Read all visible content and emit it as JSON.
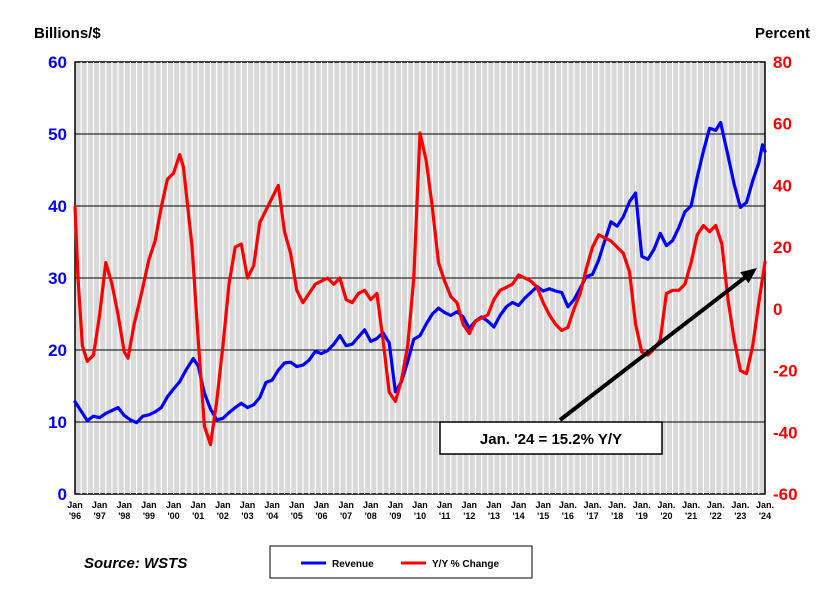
{
  "chart_data": {
    "type": "line",
    "left_axis_title": "Billions/$",
    "right_axis_title": "Percent",
    "source": "Source: WSTS",
    "annotation": "Jan. '24 = 15.2% Y/Y",
    "legend_position": "bottom-center",
    "grid": true,
    "colors": {
      "revenue": "#0000ff",
      "yoy": "#ff0000",
      "left_axis": "#0000ff",
      "right_axis": "#ff0000"
    },
    "y_left": {
      "range": [
        0,
        60
      ],
      "ticks": [
        "0",
        "10",
        "20",
        "30",
        "40",
        "50",
        "60"
      ]
    },
    "y_right": {
      "range": [
        -60,
        80
      ],
      "ticks": [
        "-60",
        "-40",
        "-20",
        "0",
        "20",
        "40",
        "60",
        "80"
      ]
    },
    "x_range": [
      1996,
      2024
    ],
    "x_ticks": [
      {
        "year": 1996,
        "line1": "Jan",
        "line2": "'96"
      },
      {
        "year": 1997,
        "line1": "Jan",
        "line2": "'97"
      },
      {
        "year": 1998,
        "line1": "Jan",
        "line2": "'98"
      },
      {
        "year": 1999,
        "line1": "Jan",
        "line2": "'99"
      },
      {
        "year": 2000,
        "line1": "Jan",
        "line2": "'00"
      },
      {
        "year": 2001,
        "line1": "Jan",
        "line2": "'01"
      },
      {
        "year": 2002,
        "line1": "Jan",
        "line2": "'02"
      },
      {
        "year": 2003,
        "line1": "Jan",
        "line2": "'03"
      },
      {
        "year": 2004,
        "line1": "Jan",
        "line2": "'04"
      },
      {
        "year": 2005,
        "line1": "Jan",
        "line2": "'05"
      },
      {
        "year": 2006,
        "line1": "Jan",
        "line2": "'06"
      },
      {
        "year": 2007,
        "line1": "Jan",
        "line2": "'07"
      },
      {
        "year": 2008,
        "line1": "Jan",
        "line2": "'08"
      },
      {
        "year": 2009,
        "line1": "Jan",
        "line2": "'09"
      },
      {
        "year": 2010,
        "line1": "Jan",
        "line2": "'10"
      },
      {
        "year": 2011,
        "line1": "Jan",
        "line2": "'11"
      },
      {
        "year": 2012,
        "line1": "Jan",
        "line2": "'12"
      },
      {
        "year": 2013,
        "line1": "Jan",
        "line2": "'13"
      },
      {
        "year": 2014,
        "line1": "Jan",
        "line2": "'14"
      },
      {
        "year": 2015,
        "line1": "Jan",
        "line2": "'15"
      },
      {
        "year": 2016,
        "line1": "Jan.",
        "line2": "'16"
      },
      {
        "year": 2017,
        "line1": "Jan.",
        "line2": "'17"
      },
      {
        "year": 2018,
        "line1": "Jan.",
        "line2": "'18"
      },
      {
        "year": 2019,
        "line1": "Jan.",
        "line2": "'19"
      },
      {
        "year": 2020,
        "line1": "Jan.",
        "line2": "'20"
      },
      {
        "year": 2021,
        "line1": "Jan.",
        "line2": "'21"
      },
      {
        "year": 2022,
        "line1": "Jan.",
        "line2": "'22"
      },
      {
        "year": 2023,
        "line1": "Jan.",
        "line2": "'23"
      },
      {
        "year": 2024,
        "line1": "Jan.",
        "line2": "'24"
      }
    ],
    "series": [
      {
        "name": "Revenue",
        "axis": "left",
        "points": [
          [
            1996.0,
            12.8
          ],
          [
            1996.25,
            11.5
          ],
          [
            1996.5,
            10.2
          ],
          [
            1996.75,
            10.8
          ],
          [
            1997.0,
            10.6
          ],
          [
            1997.25,
            11.2
          ],
          [
            1997.5,
            11.6
          ],
          [
            1997.75,
            12.0
          ],
          [
            1998.0,
            10.9
          ],
          [
            1998.25,
            10.3
          ],
          [
            1998.5,
            9.9
          ],
          [
            1998.75,
            10.8
          ],
          [
            1999.0,
            11.0
          ],
          [
            1999.25,
            11.4
          ],
          [
            1999.5,
            12.0
          ],
          [
            1999.75,
            13.5
          ],
          [
            2000.0,
            14.6
          ],
          [
            2000.25,
            15.6
          ],
          [
            2000.5,
            17.2
          ],
          [
            2000.8,
            18.8
          ],
          [
            2001.0,
            17.8
          ],
          [
            2001.25,
            14.0
          ],
          [
            2001.5,
            11.8
          ],
          [
            2001.75,
            10.3
          ],
          [
            2002.0,
            10.5
          ],
          [
            2002.25,
            11.3
          ],
          [
            2002.5,
            12.0
          ],
          [
            2002.75,
            12.6
          ],
          [
            2003.0,
            12.0
          ],
          [
            2003.25,
            12.4
          ],
          [
            2003.5,
            13.4
          ],
          [
            2003.75,
            15.5
          ],
          [
            2004.0,
            15.8
          ],
          [
            2004.25,
            17.2
          ],
          [
            2004.5,
            18.2
          ],
          [
            2004.75,
            18.3
          ],
          [
            2005.0,
            17.7
          ],
          [
            2005.25,
            17.9
          ],
          [
            2005.5,
            18.6
          ],
          [
            2005.75,
            19.8
          ],
          [
            2006.0,
            19.5
          ],
          [
            2006.25,
            19.9
          ],
          [
            2006.5,
            20.8
          ],
          [
            2006.75,
            22.0
          ],
          [
            2007.0,
            20.6
          ],
          [
            2007.25,
            20.8
          ],
          [
            2007.5,
            21.8
          ],
          [
            2007.75,
            22.8
          ],
          [
            2008.0,
            21.2
          ],
          [
            2008.25,
            21.6
          ],
          [
            2008.5,
            22.4
          ],
          [
            2008.75,
            21.0
          ],
          [
            2009.0,
            14.2
          ],
          [
            2009.25,
            15.6
          ],
          [
            2009.5,
            18.4
          ],
          [
            2009.75,
            21.5
          ],
          [
            2010.0,
            22.0
          ],
          [
            2010.25,
            23.6
          ],
          [
            2010.5,
            25.0
          ],
          [
            2010.75,
            25.8
          ],
          [
            2011.0,
            25.2
          ],
          [
            2011.25,
            24.8
          ],
          [
            2011.5,
            25.3
          ],
          [
            2011.75,
            24.6
          ],
          [
            2012.0,
            23.0
          ],
          [
            2012.25,
            24.0
          ],
          [
            2012.5,
            24.6
          ],
          [
            2012.75,
            24.0
          ],
          [
            2013.0,
            23.2
          ],
          [
            2013.25,
            24.8
          ],
          [
            2013.5,
            26.0
          ],
          [
            2013.75,
            26.6
          ],
          [
            2014.0,
            26.2
          ],
          [
            2014.25,
            27.2
          ],
          [
            2014.5,
            28.0
          ],
          [
            2014.75,
            28.8
          ],
          [
            2015.0,
            28.2
          ],
          [
            2015.25,
            28.5
          ],
          [
            2015.5,
            28.2
          ],
          [
            2015.75,
            28.0
          ],
          [
            2016.0,
            26.0
          ],
          [
            2016.25,
            27.0
          ],
          [
            2016.5,
            28.6
          ],
          [
            2016.75,
            30.2
          ],
          [
            2017.0,
            30.5
          ],
          [
            2017.25,
            32.5
          ],
          [
            2017.5,
            35.2
          ],
          [
            2017.75,
            37.8
          ],
          [
            2018.0,
            37.2
          ],
          [
            2018.25,
            38.5
          ],
          [
            2018.5,
            40.6
          ],
          [
            2018.75,
            41.8
          ],
          [
            2019.0,
            33.0
          ],
          [
            2019.25,
            32.6
          ],
          [
            2019.5,
            34.0
          ],
          [
            2019.75,
            36.2
          ],
          [
            2020.0,
            34.5
          ],
          [
            2020.25,
            35.2
          ],
          [
            2020.5,
            37.0
          ],
          [
            2020.75,
            39.2
          ],
          [
            2021.0,
            40.0
          ],
          [
            2021.25,
            44.0
          ],
          [
            2021.5,
            47.6
          ],
          [
            2021.75,
            50.8
          ],
          [
            2022.0,
            50.5
          ],
          [
            2022.2,
            51.6
          ],
          [
            2022.5,
            47.0
          ],
          [
            2022.75,
            43.0
          ],
          [
            2023.0,
            39.8
          ],
          [
            2023.25,
            40.5
          ],
          [
            2023.5,
            43.5
          ],
          [
            2023.75,
            46.0
          ],
          [
            2023.9,
            48.5
          ],
          [
            2024.0,
            47.6
          ]
        ]
      },
      {
        "name": "Y/Y % Change",
        "axis": "right",
        "points": [
          [
            1996.0,
            33
          ],
          [
            1996.12,
            10
          ],
          [
            1996.3,
            -12
          ],
          [
            1996.5,
            -17
          ],
          [
            1996.75,
            -15
          ],
          [
            1997.0,
            -2
          ],
          [
            1997.25,
            15
          ],
          [
            1997.5,
            8
          ],
          [
            1997.75,
            -2
          ],
          [
            1998.0,
            -14
          ],
          [
            1998.15,
            -16
          ],
          [
            1998.4,
            -5
          ],
          [
            1998.7,
            5
          ],
          [
            1999.0,
            16
          ],
          [
            1999.25,
            22
          ],
          [
            1999.5,
            33
          ],
          [
            1999.75,
            42
          ],
          [
            2000.0,
            44
          ],
          [
            2000.25,
            50
          ],
          [
            2000.4,
            46
          ],
          [
            2000.75,
            20
          ],
          [
            2001.0,
            -10
          ],
          [
            2001.25,
            -38
          ],
          [
            2001.5,
            -44
          ],
          [
            2001.75,
            -30
          ],
          [
            2002.0,
            -12
          ],
          [
            2002.25,
            8
          ],
          [
            2002.5,
            20
          ],
          [
            2002.75,
            21
          ],
          [
            2003.0,
            10
          ],
          [
            2003.25,
            14
          ],
          [
            2003.5,
            28
          ],
          [
            2003.75,
            32
          ],
          [
            2004.0,
            36
          ],
          [
            2004.25,
            40
          ],
          [
            2004.5,
            25
          ],
          [
            2004.75,
            18
          ],
          [
            2005.0,
            6
          ],
          [
            2005.25,
            2
          ],
          [
            2005.5,
            5
          ],
          [
            2005.75,
            8
          ],
          [
            2006.0,
            9
          ],
          [
            2006.25,
            10
          ],
          [
            2006.5,
            8
          ],
          [
            2006.75,
            10
          ],
          [
            2007.0,
            3
          ],
          [
            2007.25,
            2
          ],
          [
            2007.5,
            5
          ],
          [
            2007.75,
            6
          ],
          [
            2008.0,
            3
          ],
          [
            2008.25,
            5
          ],
          [
            2008.5,
            -10
          ],
          [
            2008.75,
            -27
          ],
          [
            2009.0,
            -30
          ],
          [
            2009.25,
            -23
          ],
          [
            2009.5,
            -12
          ],
          [
            2009.75,
            10
          ],
          [
            2010.0,
            57
          ],
          [
            2010.25,
            48
          ],
          [
            2010.5,
            33
          ],
          [
            2010.75,
            15
          ],
          [
            2011.0,
            9
          ],
          [
            2011.25,
            4
          ],
          [
            2011.5,
            2
          ],
          [
            2011.75,
            -5
          ],
          [
            2012.0,
            -8
          ],
          [
            2012.25,
            -4
          ],
          [
            2012.5,
            -3
          ],
          [
            2012.75,
            -2
          ],
          [
            2013.0,
            3
          ],
          [
            2013.25,
            6
          ],
          [
            2013.5,
            7
          ],
          [
            2013.75,
            8
          ],
          [
            2014.0,
            11
          ],
          [
            2014.25,
            10
          ],
          [
            2014.5,
            9
          ],
          [
            2014.75,
            7
          ],
          [
            2015.0,
            2
          ],
          [
            2015.25,
            -2
          ],
          [
            2015.5,
            -5
          ],
          [
            2015.75,
            -7
          ],
          [
            2016.0,
            -6
          ],
          [
            2016.25,
            0
          ],
          [
            2016.5,
            5
          ],
          [
            2016.75,
            13
          ],
          [
            2017.0,
            20
          ],
          [
            2017.25,
            24
          ],
          [
            2017.5,
            23
          ],
          [
            2017.75,
            22
          ],
          [
            2018.0,
            20
          ],
          [
            2018.25,
            18
          ],
          [
            2018.5,
            12
          ],
          [
            2018.75,
            -5
          ],
          [
            2019.0,
            -14
          ],
          [
            2019.25,
            -15
          ],
          [
            2019.5,
            -13
          ],
          [
            2019.75,
            -10
          ],
          [
            2020.0,
            5
          ],
          [
            2020.25,
            6
          ],
          [
            2020.5,
            6
          ],
          [
            2020.75,
            8
          ],
          [
            2021.0,
            15
          ],
          [
            2021.25,
            24
          ],
          [
            2021.5,
            27
          ],
          [
            2021.75,
            25
          ],
          [
            2022.0,
            27
          ],
          [
            2022.25,
            21
          ],
          [
            2022.5,
            3
          ],
          [
            2022.75,
            -10
          ],
          [
            2023.0,
            -20
          ],
          [
            2023.25,
            -21
          ],
          [
            2023.5,
            -12
          ],
          [
            2023.75,
            2
          ],
          [
            2024.0,
            15.2
          ]
        ]
      }
    ]
  }
}
